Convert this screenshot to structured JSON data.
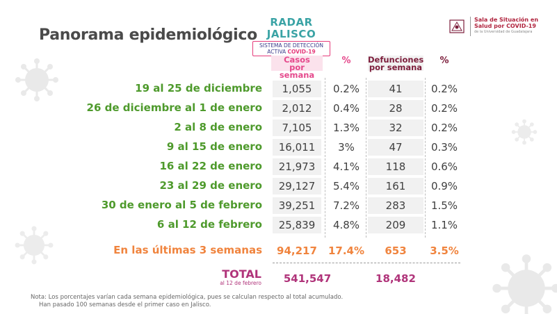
{
  "page": {
    "title": "Panorama epidemiológico"
  },
  "radar": {
    "title": "RADAR JALISCO",
    "subtitle": "SISTEMA DE DETECCIÓN",
    "subtitle2_prefix": "ACTIVA",
    "subtitle2_emph": "COVID-19"
  },
  "sala": {
    "line1": "Sala de Situación en",
    "line2": "Salud por COVID-19",
    "line3": "de la Universidad de Guadalajara"
  },
  "headers": {
    "casos": "Casos",
    "casos_sub": "por semana",
    "pct": "%",
    "def": "Defunciones",
    "def_sub": "por semana",
    "pct2": "%"
  },
  "rows": [
    {
      "label": "19 al 25 de diciembre",
      "casos": "1,055",
      "pct_casos": "0.2%",
      "defunciones": "41",
      "pct_def": "0.2%"
    },
    {
      "label": "26 de diciembre al 1 de enero",
      "casos": "2,012",
      "pct_casos": "0.4%",
      "defunciones": "28",
      "pct_def": "0.2%"
    },
    {
      "label": "2 al 8 de enero",
      "casos": "7,105",
      "pct_casos": "1.3%",
      "defunciones": "32",
      "pct_def": "0.2%"
    },
    {
      "label": "9 al 15 de enero",
      "casos": "16,011",
      "pct_casos": "3%",
      "defunciones": "47",
      "pct_def": "0.3%"
    },
    {
      "label": "16 al 22 de enero",
      "casos": "21,973",
      "pct_casos": "4.1%",
      "defunciones": "118",
      "pct_def": "0.6%"
    },
    {
      "label": "23 al 29 de enero",
      "casos": "29,127",
      "pct_casos": "5.4%",
      "defunciones": "161",
      "pct_def": "0.9%"
    },
    {
      "label": "30 de enero al 5 de febrero",
      "casos": "39,251",
      "pct_casos": "7.2%",
      "defunciones": "283",
      "pct_def": "1.5%"
    },
    {
      "label": "6 al 12 de febrero",
      "casos": "25,839",
      "pct_casos": "4.8%",
      "defunciones": "209",
      "pct_def": "1.1%"
    }
  ],
  "last3": {
    "label": "En las últimas 3 semanas",
    "casos": "94,217",
    "pct_casos": "17.4%",
    "defunciones": "653",
    "pct_def": "3.5%"
  },
  "total": {
    "label": "TOTAL",
    "sub": "al 12 de febrero",
    "casos": "541,547",
    "defunciones": "18,482"
  },
  "note": {
    "line1": "Nota: Los porcentajes varían cada semana epidemiológica, pues se calculan respecto al total acumulado.",
    "line2": "Han pasado 100 semanas desde el primer caso en Jalisco."
  },
  "colors": {
    "green": "#4e9a2c",
    "orange": "#f0843e",
    "pink": "#e5498c",
    "maroon": "#7c1d3b",
    "total": "#b0347a"
  }
}
